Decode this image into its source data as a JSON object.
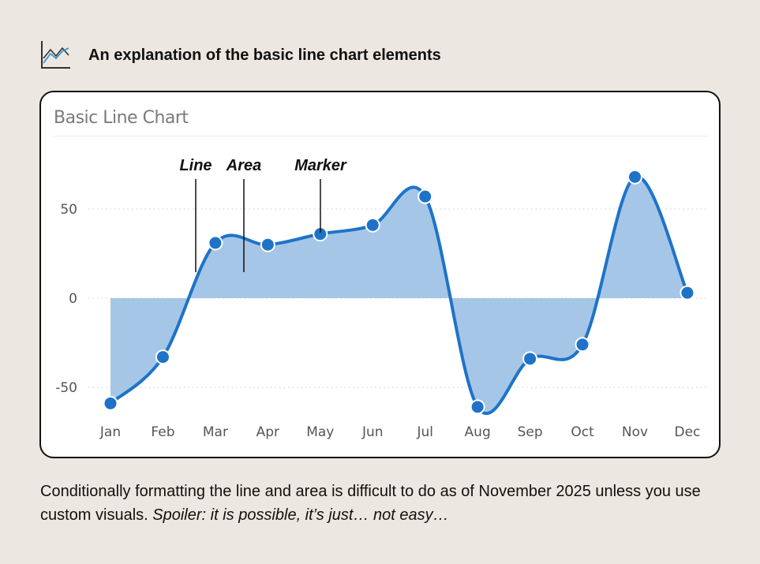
{
  "header": {
    "icon": "line-chart-icon",
    "title": "An explanation of the basic line chart elements"
  },
  "card": {
    "title": "Basic Line Chart"
  },
  "chart_data": {
    "type": "area",
    "title": "Basic Line Chart",
    "categories": [
      "Jan",
      "Feb",
      "Mar",
      "Apr",
      "May",
      "Jun",
      "Jul",
      "Aug",
      "Sep",
      "Oct",
      "Nov",
      "Dec"
    ],
    "values": [
      -59,
      -33,
      31,
      30,
      36,
      41,
      57,
      -61,
      -34,
      -26,
      68,
      3
    ],
    "yticks": [
      50,
      0,
      -50
    ],
    "ytick_labels": [
      "50",
      "0",
      "-50"
    ],
    "ylim": [
      -65,
      75
    ],
    "grid": true,
    "line_color": "#1e73c8",
    "area_color": "#a5c6e7",
    "smooth": true,
    "annotations": [
      {
        "label": "Line",
        "target": "line"
      },
      {
        "label": "Area",
        "target": "area"
      },
      {
        "label": "Marker",
        "target": "marker"
      }
    ]
  },
  "caption": {
    "text": "Conditionally formatting the line and area is difficult to do as of November 2025 unless you use custom visuals. ",
    "italic": "Spoiler: it is possible, it’s just… not easy…"
  }
}
